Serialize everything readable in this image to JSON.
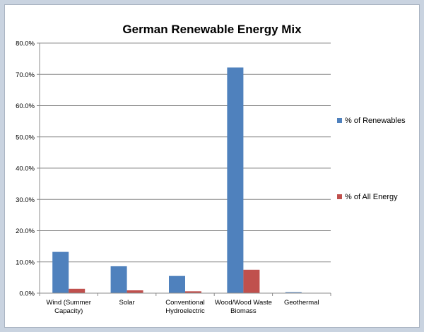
{
  "chart_data": {
    "type": "bar",
    "title": "German Renewable Energy Mix",
    "categories": [
      [
        "Wind (Summer",
        "Capacity)"
      ],
      [
        "Solar"
      ],
      [
        "Conventional",
        "Hydroelectric"
      ],
      [
        "Wood/Wood Waste",
        "Biomass"
      ],
      [
        "Geothermal"
      ]
    ],
    "series": [
      {
        "name": "% of Renewables",
        "color": "#4f81bd",
        "values": [
          13.2,
          8.6,
          5.5,
          72.2,
          0.3
        ]
      },
      {
        "name": "% of All Energy",
        "color": "#c0504d",
        "values": [
          1.4,
          0.9,
          0.6,
          7.5,
          0.0
        ]
      }
    ],
    "ylim": [
      0,
      80
    ],
    "yticks": [
      "0.0%",
      "10.0%",
      "20.0%",
      "30.0%",
      "40.0%",
      "50.0%",
      "60.0%",
      "70.0%",
      "80.0%"
    ],
    "grid": true,
    "legend": "right"
  }
}
